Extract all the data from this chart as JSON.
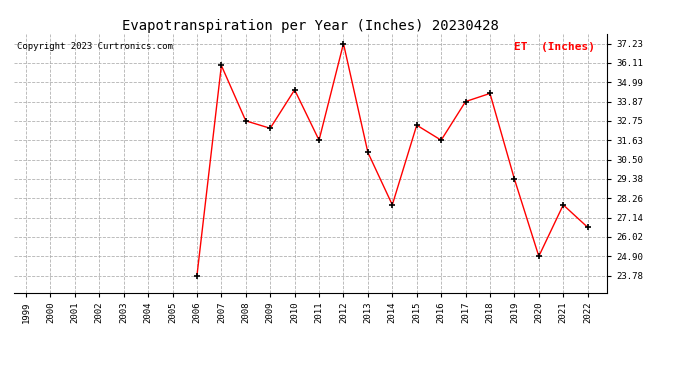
{
  "title": "Evapotranspiration per Year (Inches) 20230428",
  "copyright": "Copyright 2023 Curtronics.com",
  "legend_label": "ET  (Inches)",
  "years_data": [
    2006,
    2007,
    2008,
    2009,
    2010,
    2011,
    2012,
    2013,
    2014,
    2015,
    2016,
    2017,
    2018,
    2019,
    2020,
    2021,
    2022
  ],
  "values_data": [
    23.78,
    35.96,
    32.75,
    32.32,
    34.55,
    31.63,
    37.23,
    30.92,
    27.88,
    32.5,
    31.63,
    33.87,
    34.34,
    29.38,
    24.9,
    27.88,
    26.58
  ],
  "all_years": [
    1999,
    2000,
    2001,
    2002,
    2003,
    2004,
    2005,
    2006,
    2007,
    2008,
    2009,
    2010,
    2011,
    2012,
    2013,
    2014,
    2015,
    2016,
    2017,
    2018,
    2019,
    2020,
    2021,
    2022
  ],
  "line_color": "red",
  "marker_color": "black",
  "bg_color": "white",
  "grid_color": "#aaaaaa",
  "yticks": [
    23.78,
    24.9,
    26.02,
    27.14,
    28.26,
    29.38,
    30.5,
    31.63,
    32.75,
    33.87,
    34.99,
    36.11,
    37.23
  ],
  "ylim": [
    22.8,
    37.8
  ],
  "xlim_min": 1998.5,
  "xlim_max": 2022.8,
  "title_fontsize": 10,
  "copyright_fontsize": 6.5,
  "legend_fontsize": 8,
  "axis_fontsize": 6.5
}
